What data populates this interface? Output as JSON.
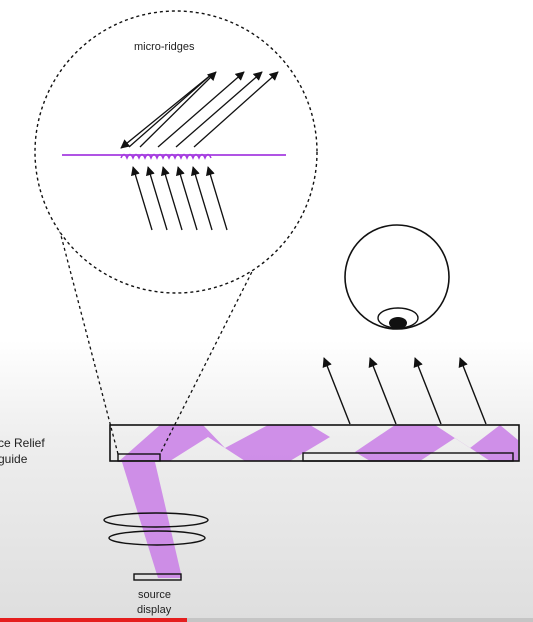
{
  "labels": {
    "micro_ridges": "micro-ridges",
    "waveguide_line1": "ce Relief",
    "waveguide_line2": "guide",
    "source_line1": "source",
    "source_line2": "display"
  },
  "colors": {
    "light": "#c97ee6",
    "ridge": "#a53be0",
    "stroke": "#111111",
    "progress": "#e51e1e"
  },
  "video_progress": 0.35
}
